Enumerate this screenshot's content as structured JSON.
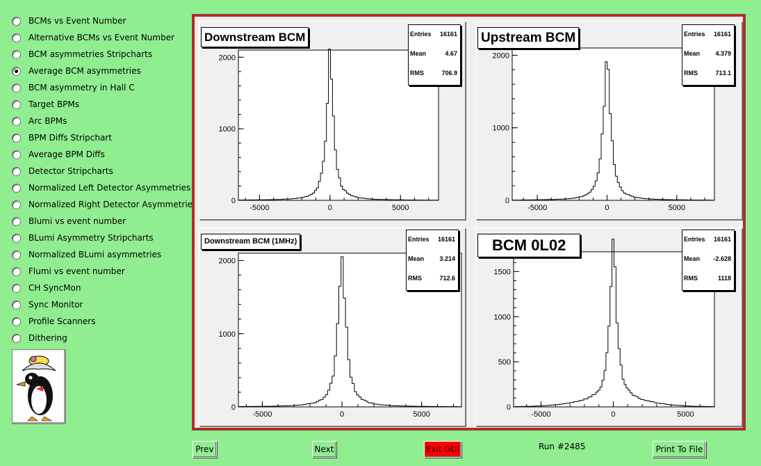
{
  "sidebar": {
    "items": [
      {
        "label": "BCMs vs Event Number",
        "checked": false
      },
      {
        "label": "Alternative BCMs vs Event Number",
        "checked": false
      },
      {
        "label": "BCM asymmetries Stripcharts",
        "checked": false
      },
      {
        "label": "Average BCM asymmetries",
        "checked": true
      },
      {
        "label": "BCM asymmetry in Hall C",
        "checked": false
      },
      {
        "label": "Target BPMs",
        "checked": false
      },
      {
        "label": "Arc BPMs",
        "checked": false
      },
      {
        "label": "BPM Diffs Stripchart",
        "checked": false
      },
      {
        "label": "Average BPM Diffs",
        "checked": false
      },
      {
        "label": "Detector Stripcharts",
        "checked": false
      },
      {
        "label": "Normalized Left Detector Asymmetries",
        "checked": false
      },
      {
        "label": "Normalized Right Detector Asymmetries",
        "checked": false
      },
      {
        "label": "Blumi vs event number",
        "checked": false
      },
      {
        "label": "BLumi Asymmetry Stripcharts",
        "checked": false
      },
      {
        "label": "Normalized BLumi asymmetries",
        "checked": false
      },
      {
        "label": "Flumi vs event number",
        "checked": false
      },
      {
        "label": "CH SyncMon",
        "checked": false
      },
      {
        "label": "Sync Monitor",
        "checked": false
      },
      {
        "label": "Profile Scanners",
        "checked": false
      },
      {
        "label": "Dithering",
        "checked": false
      }
    ]
  },
  "footer": {
    "prev_label": "Prev",
    "next_label": "Next",
    "exit_label": "Exit GUI",
    "run_label": "Run #2485",
    "print_label": "Print To File"
  },
  "colors": {
    "background": "#90ee90",
    "frame": "#cc2020",
    "exit": "#ff0000"
  },
  "chart_data": [
    {
      "type": "histogram",
      "title": "Downstream BCM",
      "stats": {
        "entries_label": "Entries",
        "entries": "16161",
        "mean_label": "Mean",
        "mean": "4.67",
        "rms_label": "RMS",
        "rms": "706.9"
      },
      "xlim": [
        -6500,
        7700
      ],
      "ylim": [
        0,
        2100
      ],
      "xticks": [
        -5000,
        0,
        5000
      ],
      "yticks": [
        0,
        1000,
        2000
      ],
      "peak": {
        "center": 0,
        "height": 2030,
        "width": 280,
        "tail": {
          "amp": 0,
          "width": 2000
        }
      }
    },
    {
      "type": "histogram",
      "title": "Upstream BCM",
      "stats": {
        "entries_label": "Entries",
        "entries": "16161",
        "mean_label": "Mean",
        "mean": "4.379",
        "rms_label": "RMS",
        "rms": "713.1"
      },
      "xlim": [
        -6800,
        7700
      ],
      "ylim": [
        0,
        2100
      ],
      "xticks": [
        -5000,
        0,
        5000
      ],
      "yticks": [
        0,
        1000,
        2000
      ],
      "peak": {
        "center": 0,
        "height": 2000,
        "width": 300,
        "tail": {
          "amp": 0,
          "width": 2000
        }
      }
    },
    {
      "type": "histogram",
      "title": "Downstream BCM (1MHz)",
      "stats": {
        "entries_label": "Entries",
        "entries": "16161",
        "mean_label": "Mean",
        "mean": "3.214",
        "rms_label": "RMS",
        "rms": "712.6"
      },
      "xlim": [
        -6500,
        7500
      ],
      "ylim": [
        0,
        2100
      ],
      "xticks": [
        -5000,
        0,
        5000
      ],
      "yticks": [
        0,
        1000,
        2000
      ],
      "peak": {
        "center": 0,
        "height": 1990,
        "width": 300,
        "tail": {
          "amp": 0,
          "width": 2000
        }
      }
    },
    {
      "type": "histogram",
      "title": "BCM 0L02",
      "stats": {
        "entries_label": "Entries",
        "entries": "16161",
        "mean_label": "Mean",
        "mean": "-2.628",
        "rms_label": "RMS",
        "rms": "1118"
      },
      "xlim": [
        -6900,
        7000
      ],
      "ylim": [
        0,
        1720
      ],
      "xticks": [
        -5000,
        0,
        5000
      ],
      "yticks": [
        0,
        500,
        1000,
        1500
      ],
      "peak": {
        "center": 0,
        "height": 1650,
        "width": 280,
        "tail": {
          "amp": 80,
          "width": 2200
        }
      }
    }
  ]
}
